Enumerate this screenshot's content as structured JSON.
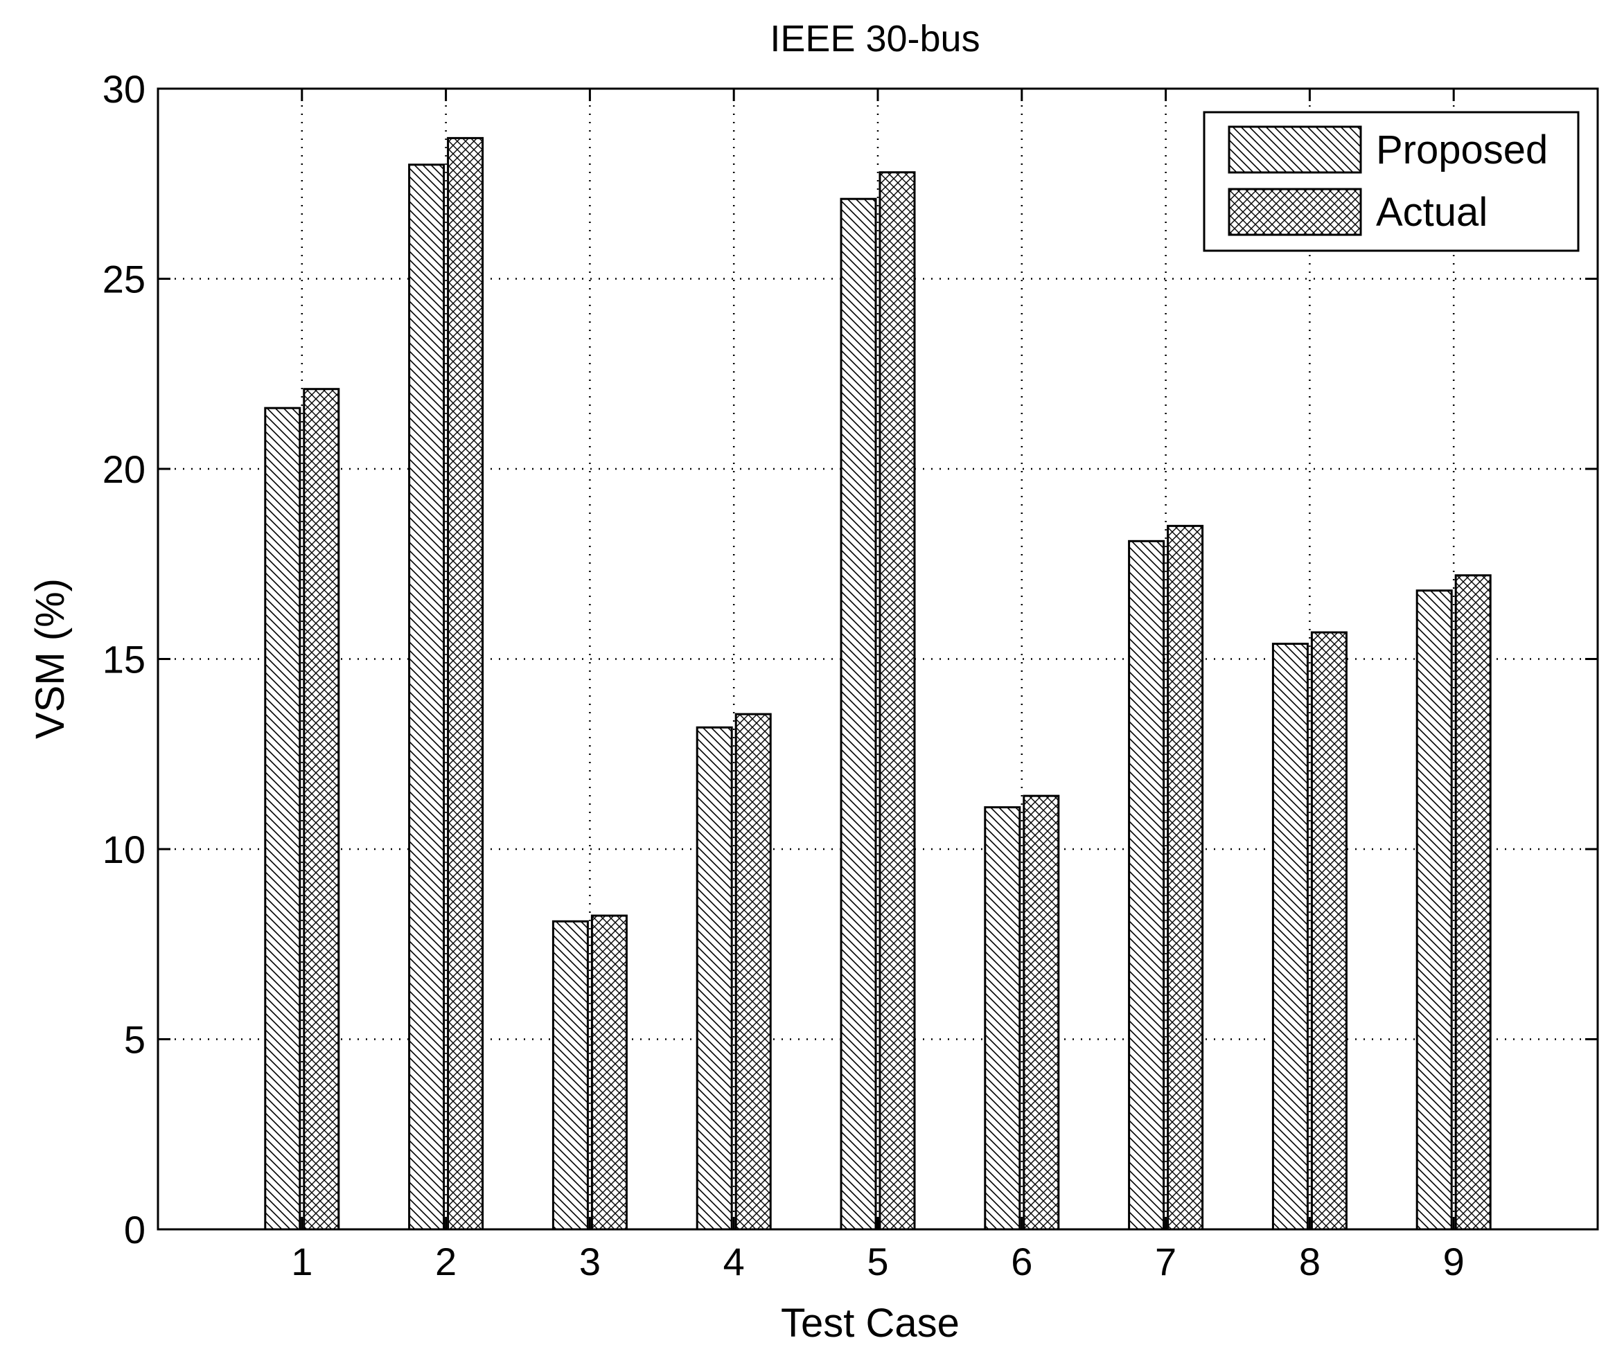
{
  "chart_data": {
    "type": "bar",
    "title": "IEEE 30-bus",
    "xlabel": "Test Case",
    "ylabel": "VSM (%)",
    "categories": [
      "1",
      "2",
      "3",
      "4",
      "5",
      "6",
      "7",
      "8",
      "9"
    ],
    "series": [
      {
        "name": "Proposed",
        "pattern": "diagonal-hatch",
        "values": [
          21.6,
          28.0,
          8.1,
          13.2,
          27.1,
          11.1,
          18.1,
          15.4,
          16.8
        ]
      },
      {
        "name": "Actual",
        "pattern": "cross-hatch",
        "values": [
          22.1,
          28.7,
          8.25,
          13.55,
          27.8,
          11.4,
          18.5,
          15.7,
          17.2
        ]
      }
    ],
    "ylim": [
      0,
      30
    ],
    "yticks": [
      0,
      5,
      10,
      15,
      20,
      25,
      30
    ],
    "grid": true,
    "legend_position": "top-right"
  }
}
